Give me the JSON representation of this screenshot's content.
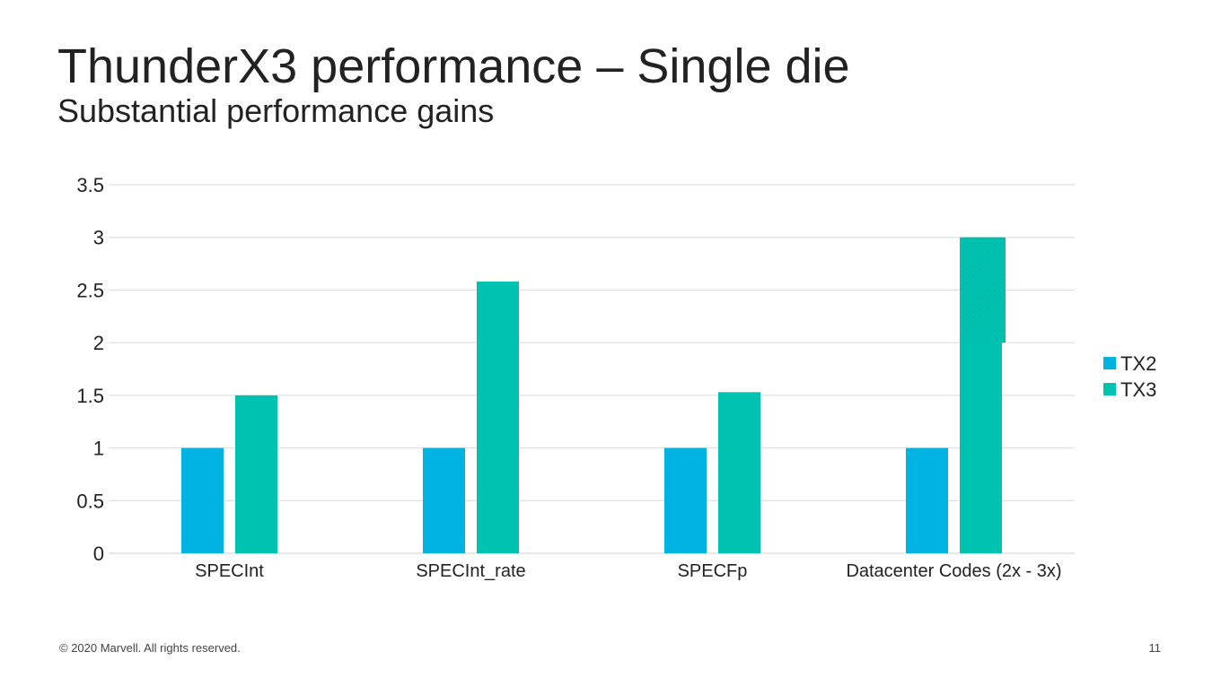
{
  "slide": {
    "title": "ThunderX3 performance – Single die",
    "subtitle": "Substantial performance gains",
    "copyright": "© 2020 Marvell. All rights reserved.",
    "page_number": "11"
  },
  "chart_data": {
    "type": "bar",
    "categories": [
      "SPECInt",
      "SPECInt_rate",
      "SPECFp",
      "Datacenter Codes (2x - 3x)"
    ],
    "series": [
      {
        "name": "TX2",
        "values": [
          1,
          1,
          1,
          1
        ],
        "color": "#00b3e0"
      },
      {
        "name": "TX3",
        "values": [
          1.5,
          2.58,
          1.53,
          3
        ],
        "color": "#00c2b0"
      }
    ],
    "range_note": {
      "category": "Datacenter Codes (2x - 3x)",
      "series": "TX3",
      "from": 2,
      "to": 3
    },
    "ylim": [
      0,
      3.5
    ],
    "yticks": [
      "0",
      "0.5",
      "1",
      "1.5",
      "2",
      "2.5",
      "3",
      "3.5"
    ],
    "grid": true,
    "legend_position": "right"
  }
}
